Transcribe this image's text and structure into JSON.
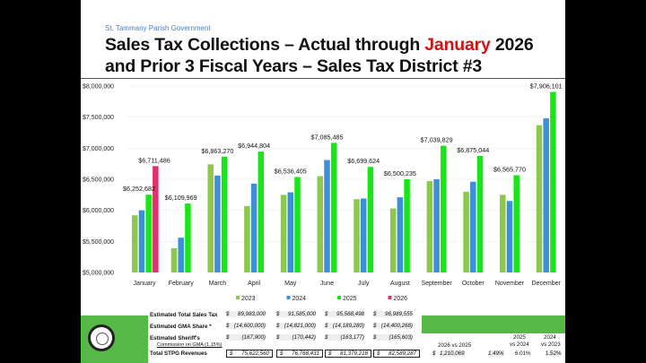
{
  "header": {
    "org": "St. Tammany Parish Government",
    "title_part1": "Sales Tax Collections – Actual through ",
    "title_highlight": "January",
    "title_part2": " 2026",
    "title_line2": "and Prior 3 Fiscal Years – Sales Tax District #3"
  },
  "chart_data": {
    "type": "bar",
    "categories": [
      "January",
      "February",
      "March",
      "April",
      "May",
      "June",
      "July",
      "August",
      "September",
      "October",
      "November",
      "December"
    ],
    "ylim": [
      5000000,
      8000000
    ],
    "yticks": [
      "$5,000,000",
      "$5,500,000",
      "$6,000,000",
      "$6,500,000",
      "$7,000,000",
      "$7,500,000",
      "$8,000,000"
    ],
    "grid": true,
    "legend_position": "bottom",
    "series": [
      {
        "name": "2023",
        "color": "#8cc84b",
        "values": [
          5920000,
          5390000,
          6740000,
          6070000,
          6250000,
          6550000,
          6180000,
          6030000,
          6470000,
          6300000,
          6250000,
          7370000
        ]
      },
      {
        "name": "2024",
        "color": "#3d8fd9",
        "values": [
          6000000,
          5560000,
          6560000,
          6430000,
          6290000,
          6810000,
          6190000,
          6210000,
          6500000,
          6460000,
          6150000,
          7480000
        ]
      },
      {
        "name": "2025",
        "color": "#19e619",
        "values": [
          6252682,
          6109969,
          6863270,
          6944804,
          6536405,
          7085485,
          6699624,
          6500235,
          7039829,
          6875044,
          6565770,
          7906101
        ]
      },
      {
        "name": "2026",
        "color": "#e0306e",
        "values": [
          6711486,
          null,
          null,
          null,
          null,
          null,
          null,
          null,
          null,
          null,
          null,
          null
        ]
      }
    ],
    "data_labels": [
      {
        "category": "January",
        "series": "2025",
        "text": "$6,252,682"
      },
      {
        "category": "January",
        "series": "2026",
        "text": "$6,711,486"
      },
      {
        "category": "February",
        "series": "2025",
        "text": "$6,109,969"
      },
      {
        "category": "March",
        "series": "2025",
        "text": "$6,863,270"
      },
      {
        "category": "April",
        "series": "2025",
        "text": "$6,944,804"
      },
      {
        "category": "May",
        "series": "2025",
        "text": "$6,536,405"
      },
      {
        "category": "June",
        "series": "2025",
        "text": "$7,085,485"
      },
      {
        "category": "July",
        "series": "2025",
        "text": "$6,699,624"
      },
      {
        "category": "August",
        "series": "2025",
        "text": "$6,500,235"
      },
      {
        "category": "September",
        "series": "2025",
        "text": "$7,039,829"
      },
      {
        "category": "October",
        "series": "2025",
        "text": "$6,875,044"
      },
      {
        "category": "November",
        "series": "2025",
        "text": "$6,565,770"
      },
      {
        "category": "December",
        "series": "2025",
        "text": "$7,906,101"
      }
    ]
  },
  "table": {
    "rows": [
      {
        "label": "Estimated Total Sales Tax",
        "values": [
          "89,983,000",
          "91,585,000",
          "95,568,498",
          "96,989,555"
        ]
      },
      {
        "label": "Estimated GMA Share *",
        "values": [
          "(14,600,000)",
          "(14,821,000)",
          "(14,189,280)",
          "(14,400,268)"
        ]
      },
      {
        "label": "Estimated Sheriff's",
        "sublabel": "Commission on GMA (1.15%)",
        "values": [
          "(167,900)",
          "(170,442)",
          "(163,177)",
          "(165,603)"
        ]
      },
      {
        "label": "Total STPG Revenues",
        "values": [
          "75,622,560",
          "76,768,431",
          "81,379,218",
          "82,589,287"
        ]
      }
    ],
    "currency": "$",
    "comparison": {
      "headers": [
        "2026  vs 2025",
        "2025",
        "vs 2024",
        "2024",
        "vs 2023"
      ],
      "diff": "1,210,069",
      "pct_2026": "1.49%",
      "pct_2025": "6.01%",
      "pct_2024": "1.52%"
    }
  }
}
